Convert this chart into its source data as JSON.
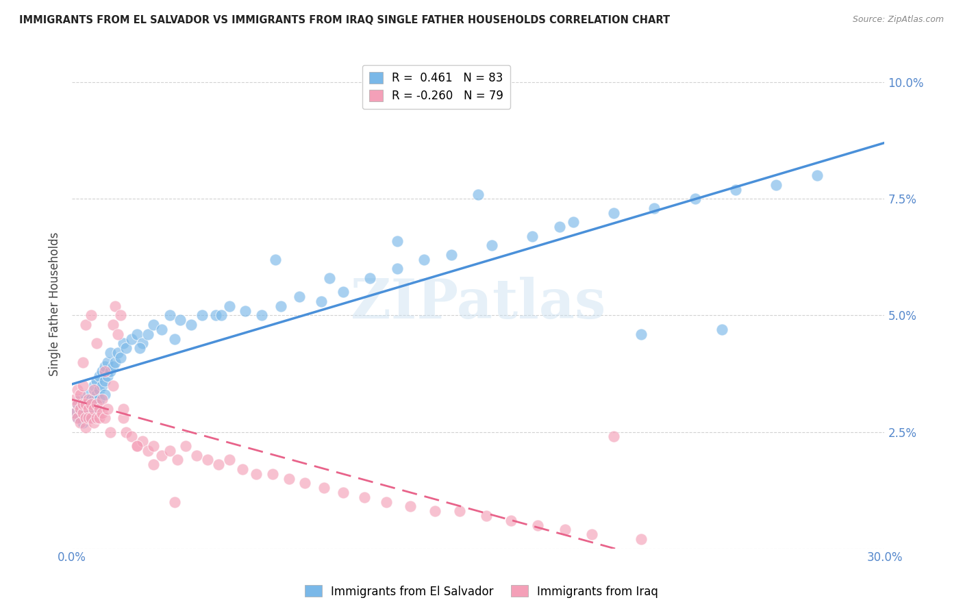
{
  "title": "IMMIGRANTS FROM EL SALVADOR VS IMMIGRANTS FROM IRAQ SINGLE FATHER HOUSEHOLDS CORRELATION CHART",
  "source": "Source: ZipAtlas.com",
  "ylabel": "Single Father Households",
  "xlim": [
    0.0,
    0.3
  ],
  "ylim": [
    0.0,
    0.105
  ],
  "xticks": [
    0.0,
    0.05,
    0.1,
    0.15,
    0.2,
    0.25,
    0.3
  ],
  "xtick_labels": [
    "0.0%",
    "",
    "",
    "",
    "",
    "",
    "30.0%"
  ],
  "yticks": [
    0.0,
    0.025,
    0.05,
    0.075,
    0.1
  ],
  "ytick_labels_right": [
    "",
    "2.5%",
    "5.0%",
    "7.5%",
    "10.0%"
  ],
  "legend_r1": "R =  0.461",
  "legend_n1": "N = 83",
  "legend_r2": "R = -0.260",
  "legend_n2": "N = 79",
  "color_blue": "#7ab8e8",
  "color_pink": "#f4a0b8",
  "color_line_blue": "#4a90d9",
  "color_line_pink": "#e8638a",
  "color_title": "#222222",
  "color_axis_labels": "#5588cc",
  "background": "#ffffff",
  "grid_color": "#cccccc",
  "watermark": "ZIPatlas",
  "legend_label_blue": "Immigrants from El Salvador",
  "legend_label_pink": "Immigrants from Iraq",
  "blue_x": [
    0.001,
    0.002,
    0.002,
    0.003,
    0.003,
    0.003,
    0.004,
    0.004,
    0.004,
    0.005,
    0.005,
    0.005,
    0.006,
    0.006,
    0.006,
    0.007,
    0.007,
    0.007,
    0.008,
    0.008,
    0.008,
    0.009,
    0.009,
    0.009,
    0.01,
    0.01,
    0.01,
    0.011,
    0.011,
    0.012,
    0.012,
    0.012,
    0.013,
    0.013,
    0.014,
    0.014,
    0.015,
    0.016,
    0.017,
    0.018,
    0.019,
    0.02,
    0.022,
    0.024,
    0.026,
    0.028,
    0.03,
    0.033,
    0.036,
    0.04,
    0.044,
    0.048,
    0.053,
    0.058,
    0.064,
    0.07,
    0.077,
    0.084,
    0.092,
    0.1,
    0.11,
    0.12,
    0.13,
    0.14,
    0.155,
    0.17,
    0.185,
    0.2,
    0.215,
    0.23,
    0.245,
    0.26,
    0.275,
    0.15,
    0.12,
    0.095,
    0.075,
    0.055,
    0.038,
    0.025,
    0.18,
    0.21,
    0.24
  ],
  "blue_y": [
    0.029,
    0.028,
    0.031,
    0.028,
    0.03,
    0.032,
    0.029,
    0.031,
    0.027,
    0.03,
    0.032,
    0.028,
    0.031,
    0.033,
    0.029,
    0.03,
    0.032,
    0.028,
    0.032,
    0.035,
    0.03,
    0.033,
    0.036,
    0.031,
    0.034,
    0.037,
    0.032,
    0.035,
    0.038,
    0.036,
    0.039,
    0.033,
    0.037,
    0.04,
    0.038,
    0.042,
    0.039,
    0.04,
    0.042,
    0.041,
    0.044,
    0.043,
    0.045,
    0.046,
    0.044,
    0.046,
    0.048,
    0.047,
    0.05,
    0.049,
    0.048,
    0.05,
    0.05,
    0.052,
    0.051,
    0.05,
    0.052,
    0.054,
    0.053,
    0.055,
    0.058,
    0.06,
    0.062,
    0.063,
    0.065,
    0.067,
    0.07,
    0.072,
    0.073,
    0.075,
    0.077,
    0.078,
    0.08,
    0.076,
    0.066,
    0.058,
    0.062,
    0.05,
    0.045,
    0.043,
    0.069,
    0.046,
    0.047
  ],
  "pink_x": [
    0.001,
    0.001,
    0.002,
    0.002,
    0.002,
    0.003,
    0.003,
    0.003,
    0.004,
    0.004,
    0.004,
    0.005,
    0.005,
    0.005,
    0.006,
    0.006,
    0.006,
    0.007,
    0.007,
    0.008,
    0.008,
    0.008,
    0.009,
    0.009,
    0.01,
    0.01,
    0.011,
    0.011,
    0.012,
    0.013,
    0.014,
    0.015,
    0.016,
    0.017,
    0.018,
    0.019,
    0.02,
    0.022,
    0.024,
    0.026,
    0.028,
    0.03,
    0.033,
    0.036,
    0.039,
    0.042,
    0.046,
    0.05,
    0.054,
    0.058,
    0.063,
    0.068,
    0.074,
    0.08,
    0.086,
    0.093,
    0.1,
    0.108,
    0.116,
    0.125,
    0.134,
    0.143,
    0.153,
    0.162,
    0.172,
    0.182,
    0.192,
    0.2,
    0.21,
    0.004,
    0.005,
    0.007,
    0.009,
    0.012,
    0.015,
    0.019,
    0.024,
    0.03,
    0.038
  ],
  "pink_y": [
    0.029,
    0.032,
    0.028,
    0.031,
    0.034,
    0.027,
    0.03,
    0.033,
    0.029,
    0.031,
    0.035,
    0.028,
    0.031,
    0.026,
    0.03,
    0.032,
    0.028,
    0.031,
    0.028,
    0.03,
    0.034,
    0.027,
    0.031,
    0.028,
    0.03,
    0.028,
    0.032,
    0.029,
    0.028,
    0.03,
    0.025,
    0.048,
    0.052,
    0.046,
    0.05,
    0.028,
    0.025,
    0.024,
    0.022,
    0.023,
    0.021,
    0.022,
    0.02,
    0.021,
    0.019,
    0.022,
    0.02,
    0.019,
    0.018,
    0.019,
    0.017,
    0.016,
    0.016,
    0.015,
    0.014,
    0.013,
    0.012,
    0.011,
    0.01,
    0.009,
    0.008,
    0.008,
    0.007,
    0.006,
    0.005,
    0.004,
    0.003,
    0.024,
    0.002,
    0.04,
    0.048,
    0.05,
    0.044,
    0.038,
    0.035,
    0.03,
    0.022,
    0.018,
    0.01
  ]
}
